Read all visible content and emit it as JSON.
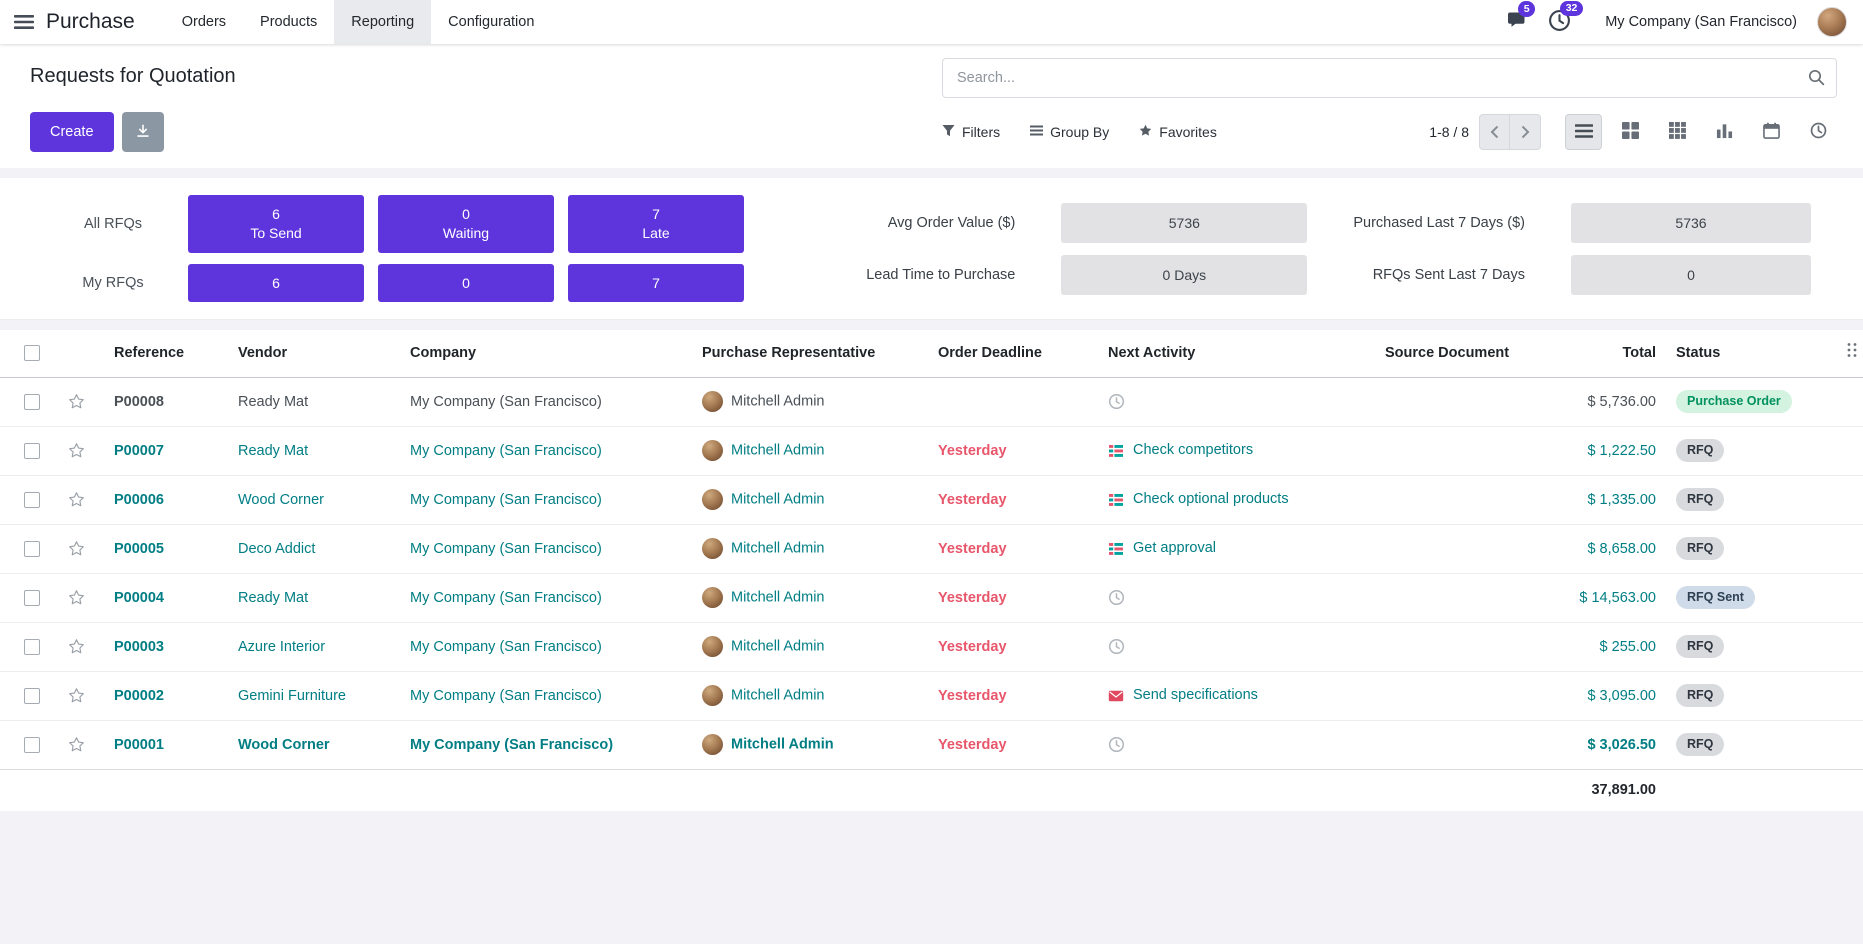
{
  "navbar": {
    "app_name": "Purchase",
    "menu_items": [
      "Orders",
      "Products",
      "Reporting",
      "Configuration"
    ],
    "active_menu": "Reporting",
    "messages_badge": "5",
    "activities_badge": "32",
    "company": "My Company (San Francisco)"
  },
  "control_panel": {
    "title": "Requests for Quotation",
    "search_placeholder": "Search...",
    "create_label": "Create",
    "filters_label": "Filters",
    "group_by_label": "Group By",
    "favorites_label": "Favorites",
    "pager": "1-8 / 8",
    "view_switcher": {
      "active": "list",
      "views": [
        "list",
        "kanban",
        "pivot",
        "graph",
        "calendar",
        "activity"
      ]
    }
  },
  "dashboard": {
    "rows": [
      {
        "label": "All RFQs",
        "buttons": [
          {
            "value": "6",
            "caption": "To Send"
          },
          {
            "value": "0",
            "caption": "Waiting"
          },
          {
            "value": "7",
            "caption": "Late"
          }
        ]
      },
      {
        "label": "My RFQs",
        "buttons": [
          {
            "value": "6"
          },
          {
            "value": "0"
          },
          {
            "value": "7"
          }
        ]
      }
    ],
    "metrics": [
      {
        "label": "Avg Order Value ($)",
        "value": "5736"
      },
      {
        "label": "Purchased Last 7 Days ($)",
        "value": "5736"
      },
      {
        "label": "Lead Time to Purchase",
        "value": "0  Days"
      },
      {
        "label": "RFQs Sent Last 7 Days",
        "value": "0"
      }
    ]
  },
  "table": {
    "columns": [
      "Reference",
      "Vendor",
      "Company",
      "Purchase Representative",
      "Order Deadline",
      "Next Activity",
      "Source Document",
      "Total",
      "Status"
    ],
    "rows": [
      {
        "ref": "P00008",
        "vendor": "Ready Mat",
        "company": "My Company (San Francisco)",
        "rep": "Mitchell Admin",
        "deadline": "",
        "activity": "",
        "activity_icon": "clock",
        "source": "",
        "total": "$ 5,736.00",
        "status": "Purchase Order",
        "status_variant": "success",
        "muted": true
      },
      {
        "ref": "P00007",
        "vendor": "Ready Mat",
        "company": "My Company (San Francisco)",
        "rep": "Mitchell Admin",
        "deadline": "Yesterday",
        "activity": "Check competitors",
        "activity_icon": "list",
        "source": "",
        "total": "$ 1,222.50",
        "status": "RFQ",
        "status_variant": "default"
      },
      {
        "ref": "P00006",
        "vendor": "Wood Corner",
        "company": "My Company (San Francisco)",
        "rep": "Mitchell Admin",
        "deadline": "Yesterday",
        "activity": "Check optional products",
        "activity_icon": "list",
        "source": "",
        "total": "$ 1,335.00",
        "status": "RFQ",
        "status_variant": "default"
      },
      {
        "ref": "P00005",
        "vendor": "Deco Addict",
        "company": "My Company (San Francisco)",
        "rep": "Mitchell Admin",
        "deadline": "Yesterday",
        "activity": "Get approval",
        "activity_icon": "list",
        "source": "",
        "total": "$ 8,658.00",
        "status": "RFQ",
        "status_variant": "default"
      },
      {
        "ref": "P00004",
        "vendor": "Ready Mat",
        "company": "My Company (San Francisco)",
        "rep": "Mitchell Admin",
        "deadline": "Yesterday",
        "activity": "",
        "activity_icon": "clock",
        "source": "",
        "total": "$ 14,563.00",
        "status": "RFQ Sent",
        "status_variant": "info"
      },
      {
        "ref": "P00003",
        "vendor": "Azure Interior",
        "company": "My Company (San Francisco)",
        "rep": "Mitchell Admin",
        "deadline": "Yesterday",
        "activity": "",
        "activity_icon": "clock",
        "source": "",
        "total": "$ 255.00",
        "status": "RFQ",
        "status_variant": "default"
      },
      {
        "ref": "P00002",
        "vendor": "Gemini Furniture",
        "company": "My Company (San Francisco)",
        "rep": "Mitchell Admin",
        "deadline": "Yesterday",
        "activity": "Send specifications",
        "activity_icon": "mail",
        "source": "",
        "total": "$ 3,095.00",
        "status": "RFQ",
        "status_variant": "default"
      },
      {
        "ref": "P00001",
        "vendor": "Wood Corner",
        "company": "My Company (San Francisco)",
        "rep": "Mitchell Admin",
        "deadline": "Yesterday",
        "activity": "",
        "activity_icon": "clock",
        "source": "",
        "total": "$ 3,026.50",
        "status": "RFQ",
        "status_variant": "default",
        "bold": true
      }
    ],
    "footer_total": "37,891.00"
  }
}
